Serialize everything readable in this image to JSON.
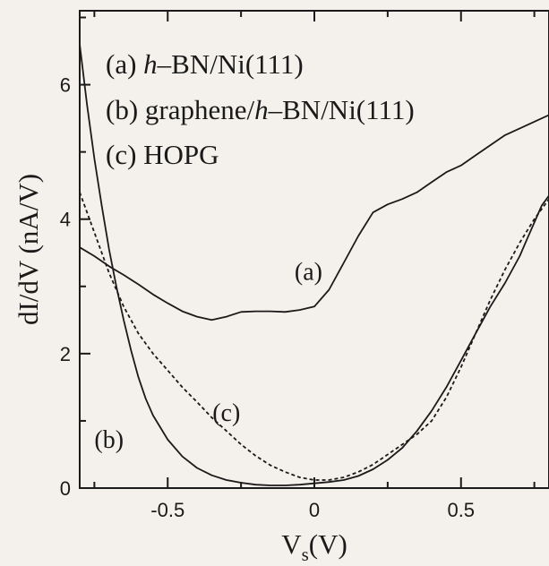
{
  "chart_data": {
    "type": "line",
    "title": "",
    "xlabel": "V",
    "xlabel_sub": "s",
    "xlabel_unit": "(V)",
    "ylabel": "dI/dV (nA/V)",
    "xlim": [
      -0.8,
      0.8
    ],
    "ylim": [
      0,
      7.1
    ],
    "x_ticks": [
      {
        "value": -0.5,
        "label": "-0.5"
      },
      {
        "value": 0,
        "label": "0"
      },
      {
        "value": 0.5,
        "label": "0.5"
      }
    ],
    "y_ticks": [
      {
        "value": 0,
        "label": "0"
      },
      {
        "value": 2,
        "label": "2"
      },
      {
        "value": 4,
        "label": "4"
      },
      {
        "value": 6,
        "label": "6"
      }
    ],
    "legend": [
      {
        "prefix": "(a) ",
        "italic": "h",
        "suffix": "–BN/Ni(111)"
      },
      {
        "prefix": "(b) graphene/",
        "italic": "h",
        "suffix": "–BN/Ni(111)"
      },
      {
        "prefix": "(c) HOPG",
        "italic": "",
        "suffix": ""
      }
    ],
    "series": [
      {
        "id": "a",
        "label": "(a)",
        "label_at": [
          -0.02,
          3.1
        ],
        "style": "solid",
        "x": [
          -0.8,
          -0.75,
          -0.7,
          -0.65,
          -0.6,
          -0.55,
          -0.5,
          -0.45,
          -0.4,
          -0.35,
          -0.3,
          -0.25,
          -0.2,
          -0.15,
          -0.1,
          -0.05,
          0.0,
          0.05,
          0.1,
          0.15,
          0.2,
          0.25,
          0.3,
          0.35,
          0.4,
          0.45,
          0.5,
          0.55,
          0.6,
          0.65,
          0.7,
          0.75,
          0.8
        ],
        "y": [
          3.58,
          3.45,
          3.3,
          3.17,
          3.03,
          2.88,
          2.75,
          2.63,
          2.55,
          2.5,
          2.55,
          2.62,
          2.63,
          2.63,
          2.62,
          2.65,
          2.7,
          2.95,
          3.35,
          3.75,
          4.1,
          4.22,
          4.3,
          4.4,
          4.55,
          4.7,
          4.8,
          4.95,
          5.1,
          5.25,
          5.35,
          5.45,
          5.55
        ]
      },
      {
        "id": "b",
        "label": "(b)",
        "label_at": [
          -0.7,
          0.6
        ],
        "style": "solid",
        "x": [
          -0.8,
          -0.775,
          -0.75,
          -0.725,
          -0.7,
          -0.675,
          -0.65,
          -0.625,
          -0.6,
          -0.575,
          -0.55,
          -0.5,
          -0.45,
          -0.4,
          -0.35,
          -0.3,
          -0.25,
          -0.2,
          -0.15,
          -0.1,
          -0.05,
          0.0,
          0.05,
          0.1,
          0.15,
          0.2,
          0.25,
          0.3,
          0.35,
          0.4,
          0.45,
          0.5,
          0.55,
          0.6,
          0.65,
          0.7,
          0.725,
          0.75,
          0.775,
          0.8
        ],
        "y": [
          6.6,
          5.7,
          4.9,
          4.2,
          3.55,
          3.0,
          2.5,
          2.05,
          1.65,
          1.33,
          1.08,
          0.72,
          0.47,
          0.3,
          0.19,
          0.12,
          0.08,
          0.05,
          0.04,
          0.04,
          0.05,
          0.07,
          0.09,
          0.12,
          0.18,
          0.28,
          0.42,
          0.6,
          0.85,
          1.15,
          1.5,
          1.9,
          2.3,
          2.7,
          3.05,
          3.45,
          3.7,
          3.95,
          4.2,
          4.35
        ]
      },
      {
        "id": "c",
        "label": "(c)",
        "label_at": [
          -0.3,
          1.0
        ],
        "style": "dashed",
        "x": [
          -0.8,
          -0.75,
          -0.7,
          -0.65,
          -0.6,
          -0.55,
          -0.5,
          -0.45,
          -0.4,
          -0.35,
          -0.3,
          -0.25,
          -0.2,
          -0.15,
          -0.1,
          -0.05,
          0.0,
          0.05,
          0.1,
          0.15,
          0.2,
          0.25,
          0.3,
          0.35,
          0.4,
          0.45,
          0.5,
          0.55,
          0.6,
          0.65,
          0.7,
          0.75,
          0.8
        ],
        "y": [
          4.4,
          3.8,
          3.2,
          2.7,
          2.3,
          2.0,
          1.75,
          1.5,
          1.28,
          1.05,
          0.85,
          0.65,
          0.48,
          0.34,
          0.24,
          0.16,
          0.12,
          0.12,
          0.16,
          0.24,
          0.35,
          0.5,
          0.65,
          0.8,
          1.0,
          1.35,
          1.8,
          2.3,
          2.8,
          3.25,
          3.65,
          4.0,
          4.3
        ]
      }
    ]
  }
}
